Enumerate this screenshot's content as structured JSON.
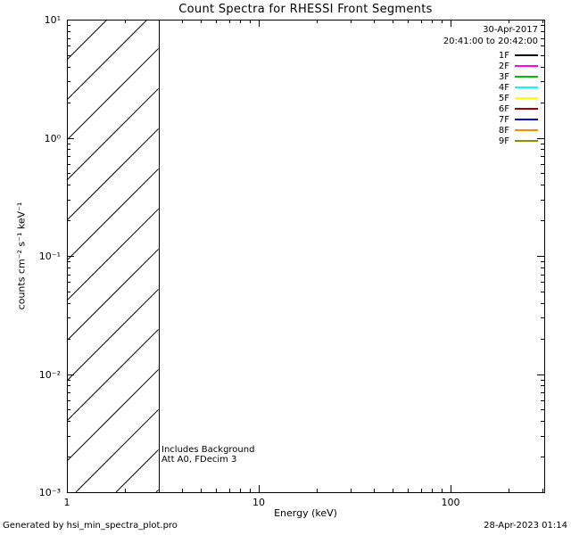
{
  "title": "Count Spectra for RHESSI Front Segments",
  "annotations": {
    "line1": "Includes Background",
    "line2": "Att A0, FDecim 3"
  },
  "legend": {
    "date": "30-Apr-2017",
    "time_range": "20:41:00 to 20:42:00",
    "items": [
      {
        "label": "1F",
        "color": "#000000"
      },
      {
        "label": "2F",
        "color": "#ff00ff"
      },
      {
        "label": "3F",
        "color": "#00c000"
      },
      {
        "label": "4F",
        "color": "#00ffff"
      },
      {
        "label": "5F",
        "color": "#ffff00"
      },
      {
        "label": "6F",
        "color": "#a00000"
      },
      {
        "label": "7F",
        "color": "#0000cc"
      },
      {
        "label": "8F",
        "color": "#ff8800"
      },
      {
        "label": "9F",
        "color": "#8f8f00"
      }
    ]
  },
  "footer": {
    "left": "Generated by hsi_min_spectra_plot.pro",
    "right": "28-Apr-2023 01:14"
  },
  "chart_data": {
    "type": "line",
    "title": "Count Spectra for RHESSI Front Segments",
    "xlabel": "Energy (keV)",
    "ylabel": "counts cm⁻² s⁻¹ keV⁻¹",
    "x_scale": "log",
    "y_scale": "log",
    "xlim": [
      1,
      308
    ],
    "ylim": [
      0.001,
      10
    ],
    "x_major_ticks": [
      1,
      10,
      100
    ],
    "x_tick_labels": [
      "1",
      "10",
      "100"
    ],
    "y_major_ticks": [
      0.001,
      0.01,
      0.1,
      1,
      10
    ],
    "y_tick_labels": [
      "10⁻³",
      "10⁻²",
      "10⁻¹",
      "10⁰",
      "10¹"
    ],
    "grid": false,
    "legend_position": "top-right",
    "series": [
      {
        "name": "1F",
        "color": "#000000",
        "x": [],
        "values": []
      },
      {
        "name": "2F",
        "color": "#ff00ff",
        "x": [],
        "values": []
      },
      {
        "name": "3F",
        "color": "#00c000",
        "x": [],
        "values": []
      },
      {
        "name": "4F",
        "color": "#00ffff",
        "x": [],
        "values": []
      },
      {
        "name": "5F",
        "color": "#ffff00",
        "x": [],
        "values": []
      },
      {
        "name": "6F",
        "color": "#a00000",
        "x": [],
        "values": []
      },
      {
        "name": "7F",
        "color": "#0000cc",
        "x": [],
        "values": []
      },
      {
        "name": "8F",
        "color": "#ff8800",
        "x": [],
        "values": []
      },
      {
        "name": "9F",
        "color": "#8f8f00",
        "x": [],
        "values": []
      }
    ],
    "series_note": "No spectra curves are drawn in the visible range; plot area is empty except the hatched region.",
    "background_region": {
      "style": "diagonal-hatch",
      "x_range": [
        1,
        3
      ],
      "y_range": [
        0.001,
        10
      ]
    },
    "annotations": [
      "Includes Background",
      "Att A0, FDecim 3"
    ]
  }
}
